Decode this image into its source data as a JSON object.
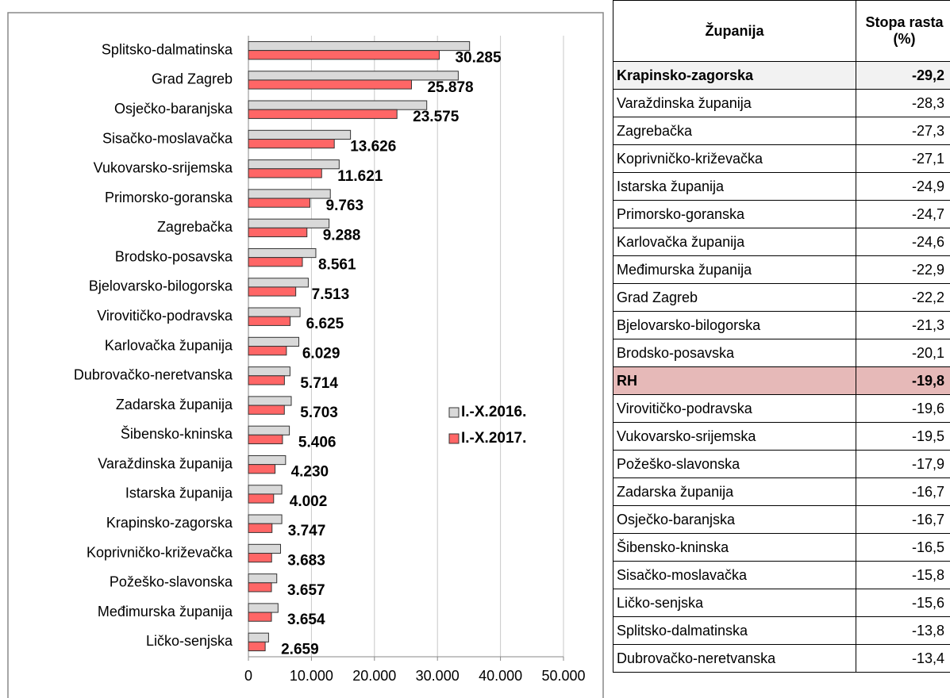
{
  "chart_data": {
    "type": "bar",
    "orientation": "horizontal",
    "categories": [
      "Splitsko-dalmatinska",
      "Grad Zagreb",
      "Osječko-baranjska",
      "Sisačko-moslavačka",
      "Vukovarsko-srijemska",
      "Primorsko-goranska",
      "Zagrebačka",
      "Brodsko-posavska",
      "Bjelovarsko-bilogorska",
      "Virovitičko-podravska",
      "Karlovačka županija",
      "Dubrovačko-neretvanska",
      "Zadarska županija",
      "Šibensko-kninska",
      "Varaždinska županija",
      "Istarska županija",
      "Krapinsko-zagorska",
      "Koprivničko-križevačka",
      "Požeško-slavonska",
      "Međimurska županija",
      "Ličko-senjska"
    ],
    "series": [
      {
        "name": "I.-X.2016.",
        "color": "#d9d9d9",
        "values": [
          35100,
          33300,
          28300,
          16200,
          14400,
          13000,
          12800,
          10700,
          9500,
          8200,
          8000,
          6600,
          6800,
          6500,
          5900,
          5300,
          5300,
          5100,
          4500,
          4700,
          3200
        ]
      },
      {
        "name": "I.-X.2017.",
        "color": "#ff6666",
        "values": [
          30285,
          25878,
          23575,
          13626,
          11621,
          9763,
          9288,
          8561,
          7513,
          6625,
          6029,
          5714,
          5703,
          5406,
          4230,
          4002,
          3747,
          3683,
          3657,
          3654,
          2659
        ],
        "value_labels": [
          "30.285",
          "25.878",
          "23.575",
          "13.626",
          "11.621",
          "9.763",
          "9.288",
          "8.561",
          "7.513",
          "6.625",
          "6.029",
          "5.714",
          "5.703",
          "5.406",
          "4.230",
          "4.002",
          "3.747",
          "3.683",
          "3.657",
          "3.654",
          "2.659"
        ]
      }
    ],
    "xlim": [
      0,
      50000
    ],
    "xticks": [
      0,
      {
        "value": 10000,
        "label": "10.000"
      },
      {
        "value": 20000,
        "label": "20.000"
      },
      {
        "value": 30000,
        "label": "30.000"
      },
      {
        "value": 40000,
        "label": "40.000"
      },
      {
        "value": 50000,
        "label": "50.000"
      }
    ],
    "grid": true,
    "legend": "right"
  },
  "table": {
    "header": [
      "Županija",
      "Stopa rasta (%)"
    ],
    "rows": [
      [
        "Krapinsko-zagorska",
        "-29,2"
      ],
      [
        "Varaždinska županija",
        "-28,3"
      ],
      [
        "Zagrebačka",
        "-27,3"
      ],
      [
        "Koprivničko-križevačka",
        "-27,1"
      ],
      [
        "Istarska županija",
        "-24,9"
      ],
      [
        "Primorsko-goranska",
        "-24,7"
      ],
      [
        "Karlovačka županija",
        "-24,6"
      ],
      [
        "Međimurska županija",
        "-22,9"
      ],
      [
        "Grad Zagreb",
        "-22,2"
      ],
      [
        "Bjelovarsko-bilogorska",
        "-21,3"
      ],
      [
        "Brodsko-posavska",
        "-20,1"
      ],
      [
        "RH",
        "-19,8"
      ],
      [
        "Virovitičko-podravska",
        "-19,6"
      ],
      [
        "Vukovarsko-srijemska",
        "-19,5"
      ],
      [
        "Požeško-slavonska",
        "-17,9"
      ],
      [
        "Zadarska županija",
        "-16,7"
      ],
      [
        "Osječko-baranjska",
        "-16,7"
      ],
      [
        "Šibensko-kninska",
        "-16,5"
      ],
      [
        "Sisačko-moslavačka",
        "-15,8"
      ],
      [
        "Ličko-senjska",
        "-15,6"
      ],
      [
        "Splitsko-dalmatinska",
        "-13,8"
      ],
      [
        "Dubrovačko-neretvanska",
        "-13,4"
      ]
    ]
  }
}
